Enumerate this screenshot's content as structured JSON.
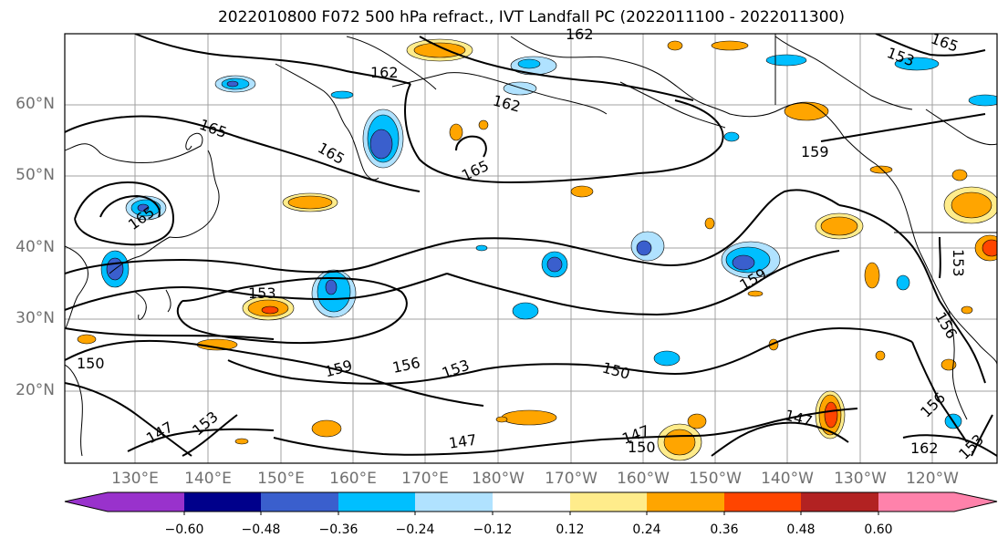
{
  "title": "2022010800 F072 500 hPa refract., IVT Landfall PC (2022011100 - 2022011300)",
  "lat_labels": [
    "60°N",
    "50°N",
    "40°N",
    "30°N",
    "20°N"
  ],
  "lon_labels": [
    "130°E",
    "140°E",
    "150°E",
    "160°E",
    "170°E",
    "180°W",
    "170°W",
    "160°W",
    "150°W",
    "140°W",
    "130°W",
    "120°W"
  ],
  "colorbar": {
    "colors": [
      "#9932cc",
      "#00008b",
      "#3a5fcd",
      "#00bfff",
      "#b0e2ff",
      "#ffffff",
      "#ffec8b",
      "#ffa500",
      "#ff4500",
      "#b22222",
      "#ff82ab"
    ],
    "tick_labels": [
      "−0.60",
      "−0.48",
      "−0.36",
      "−0.24",
      "−0.12",
      "0.12",
      "0.24",
      "0.36",
      "0.48",
      "0.60"
    ]
  },
  "contour_labels": [
    "165",
    "162",
    "162",
    "162",
    "165",
    "165",
    "165",
    "165",
    "159",
    "159",
    "153",
    "153",
    "150",
    "159",
    "156",
    "153",
    "150",
    "147",
    "153",
    "147",
    "147",
    "150",
    "147",
    "156",
    "156",
    "153",
    "162",
    "153"
  ]
}
